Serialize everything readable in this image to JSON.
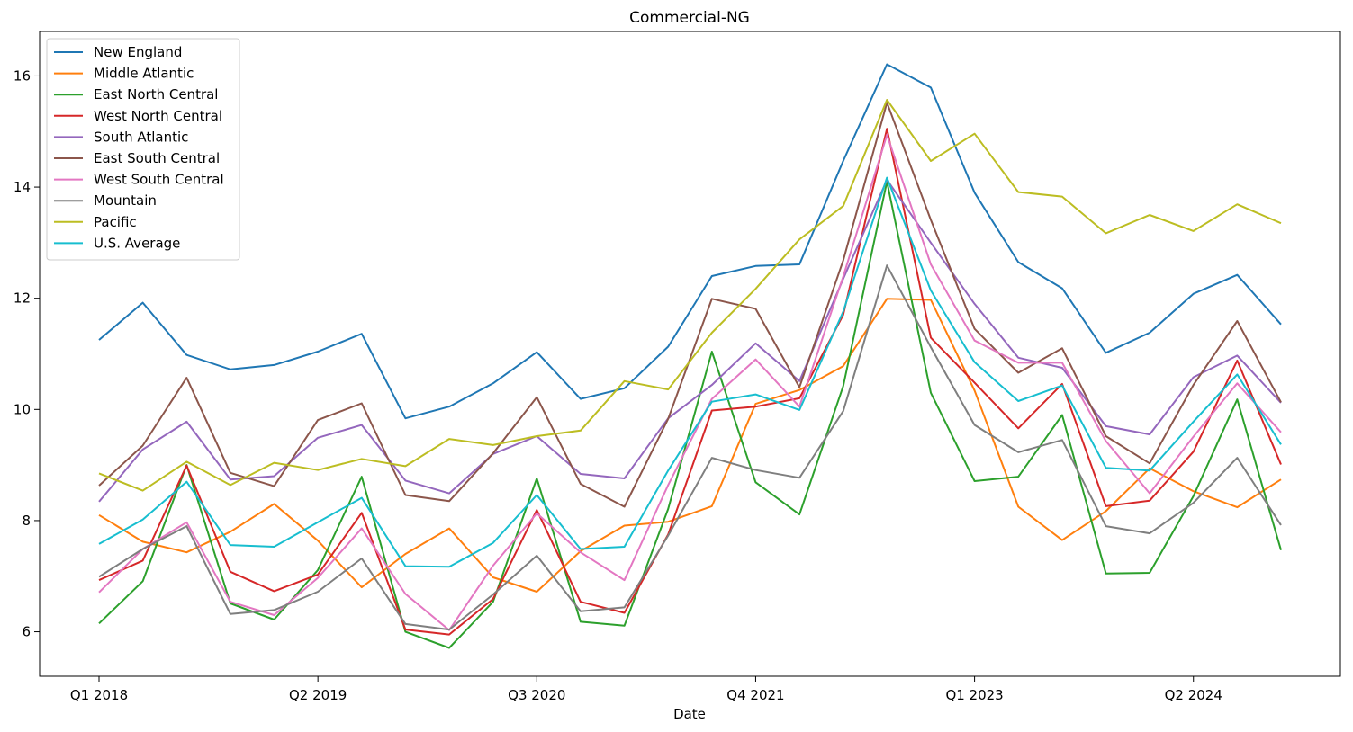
{
  "chart_data": {
    "type": "line",
    "title": "Commercial-NG",
    "xlabel": "Date",
    "ylabel": "",
    "x": [
      "Q1 2018",
      "Q2 2018",
      "Q3 2018",
      "Q4 2018",
      "Q1 2019",
      "Q2 2019",
      "Q3 2019",
      "Q4 2019",
      "Q1 2020",
      "Q2 2020",
      "Q3 2020",
      "Q4 2020",
      "Q1 2021",
      "Q2 2021",
      "Q3 2021",
      "Q4 2021",
      "Q1 2022",
      "Q2 2022",
      "Q3 2022",
      "Q4 2022",
      "Q1 2023",
      "Q2 2023",
      "Q3 2023",
      "Q4 2023",
      "Q1 2024",
      "Q2 2024",
      "Q3 2024",
      "Q4 2024"
    ],
    "x_ticks": [
      "Q1 2018",
      "Q2 2019",
      "Q3 2020",
      "Q4 2021",
      "Q1 2023",
      "Q2 2024"
    ],
    "ylim": [
      5.2,
      16.8
    ],
    "y_ticks": [
      6,
      8,
      10,
      12,
      14,
      16
    ],
    "grid": false,
    "legend_position": "top-left",
    "series": [
      {
        "name": "New England",
        "color": "#1f77b4",
        "values": [
          11.25,
          11.92,
          10.98,
          10.72,
          10.8,
          11.04,
          11.36,
          9.84,
          10.05,
          10.47,
          11.03,
          10.19,
          10.38,
          11.13,
          12.4,
          12.58,
          12.61,
          14.47,
          16.21,
          15.79,
          13.9,
          12.65,
          12.18,
          11.02,
          11.38,
          12.08,
          12.42,
          11.53
        ]
      },
      {
        "name": "Middle Atlantic",
        "color": "#ff7f0e",
        "values": [
          8.1,
          7.62,
          7.43,
          7.8,
          8.3,
          7.64,
          6.8,
          7.4,
          7.86,
          6.98,
          6.72,
          7.45,
          7.91,
          7.98,
          8.26,
          10.1,
          10.35,
          10.78,
          11.99,
          11.97,
          10.34,
          8.25,
          7.65,
          8.17,
          8.94,
          8.53,
          8.24,
          8.74
        ]
      },
      {
        "name": "East North Central",
        "color": "#2ca02c",
        "values": [
          6.15,
          6.91,
          9.0,
          6.51,
          6.22,
          7.11,
          8.79,
          6.0,
          5.71,
          6.54,
          8.76,
          6.18,
          6.11,
          8.21,
          11.04,
          8.69,
          8.11,
          10.42,
          14.1,
          10.3,
          8.71,
          8.79,
          9.9,
          7.05,
          7.06,
          8.44,
          10.18,
          7.47
        ]
      },
      {
        "name": "West North Central",
        "color": "#d62728",
        "values": [
          6.93,
          7.28,
          8.99,
          7.08,
          6.73,
          7.03,
          8.14,
          6.04,
          5.95,
          6.59,
          8.19,
          6.54,
          6.34,
          7.75,
          9.98,
          10.05,
          10.2,
          11.7,
          15.05,
          11.29,
          10.48,
          9.66,
          10.46,
          8.26,
          8.36,
          9.24,
          10.88,
          9.01
        ]
      },
      {
        "name": "South Atlantic",
        "color": "#9467bd",
        "values": [
          8.34,
          9.28,
          9.78,
          8.74,
          8.8,
          9.49,
          9.72,
          8.72,
          8.49,
          9.2,
          9.52,
          8.84,
          8.76,
          9.84,
          10.44,
          11.19,
          10.51,
          12.35,
          14.13,
          13.0,
          11.9,
          10.93,
          10.75,
          9.7,
          9.55,
          10.58,
          10.97,
          10.12
        ]
      },
      {
        "name": "East South Central",
        "color": "#8c564b",
        "values": [
          8.63,
          9.35,
          10.57,
          8.86,
          8.62,
          9.81,
          10.11,
          8.46,
          8.35,
          9.21,
          10.22,
          8.66,
          8.25,
          9.83,
          11.99,
          11.81,
          10.4,
          12.68,
          15.52,
          13.41,
          11.45,
          10.66,
          11.1,
          9.52,
          9.03,
          10.44,
          11.59,
          10.13
        ]
      },
      {
        "name": "West South Central",
        "color": "#e377c2",
        "values": [
          6.71,
          7.49,
          7.97,
          6.54,
          6.3,
          6.97,
          7.86,
          6.68,
          6.03,
          7.19,
          8.13,
          7.43,
          6.93,
          8.64,
          10.19,
          10.9,
          10.05,
          12.39,
          14.94,
          12.61,
          11.24,
          10.84,
          10.84,
          9.43,
          8.49,
          9.51,
          10.47,
          9.59
        ]
      },
      {
        "name": "Mountain",
        "color": "#7f7f7f",
        "values": [
          6.99,
          7.49,
          7.9,
          6.32,
          6.39,
          6.72,
          7.32,
          6.14,
          6.04,
          6.67,
          7.37,
          6.37,
          6.44,
          7.73,
          9.13,
          8.91,
          8.77,
          9.97,
          12.59,
          11.12,
          9.72,
          9.23,
          9.45,
          7.9,
          7.77,
          8.32,
          9.13,
          7.92
        ]
      },
      {
        "name": "Pacific",
        "color": "#bcbd22",
        "values": [
          8.85,
          8.54,
          9.06,
          8.64,
          9.04,
          8.91,
          9.11,
          8.98,
          9.47,
          9.36,
          9.52,
          9.62,
          10.51,
          10.36,
          11.38,
          12.17,
          13.06,
          13.66,
          15.57,
          14.47,
          14.96,
          13.91,
          13.83,
          13.17,
          13.5,
          13.21,
          13.69,
          13.35
        ]
      },
      {
        "name": "U.S. Average",
        "color": "#17becf",
        "values": [
          7.58,
          8.02,
          8.7,
          7.56,
          7.53,
          7.97,
          8.41,
          7.18,
          7.17,
          7.6,
          8.46,
          7.49,
          7.53,
          8.9,
          10.14,
          10.27,
          9.99,
          11.76,
          14.17,
          12.14,
          10.85,
          10.15,
          10.43,
          8.95,
          8.9,
          9.78,
          10.63,
          9.37
        ]
      }
    ]
  }
}
